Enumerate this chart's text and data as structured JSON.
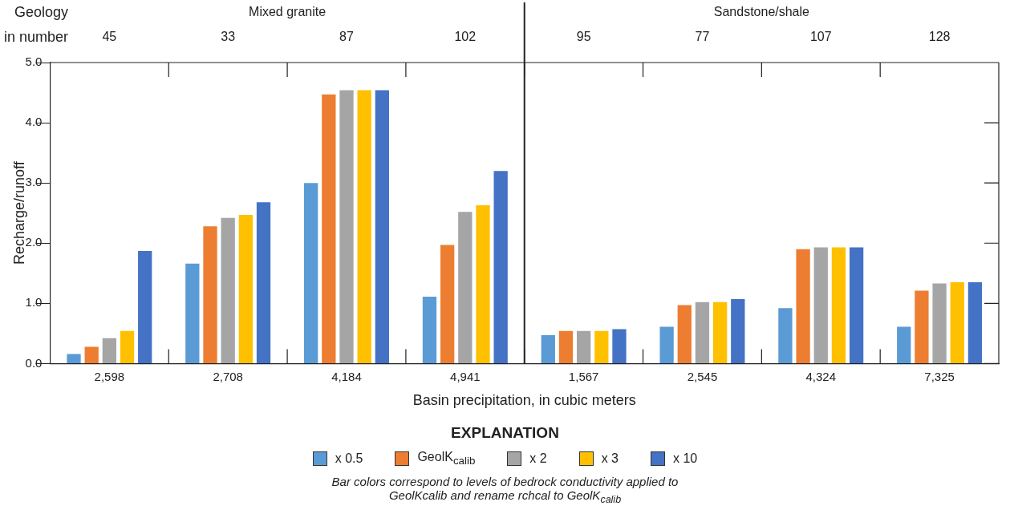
{
  "chart_data": {
    "type": "bar",
    "xlabel": "Basin precipitation, in cubic meters",
    "ylabel": "Recharge/runoff",
    "legend_title": "EXPLANATION",
    "legend": "bottom",
    "categories": [
      "2,598",
      "2,708",
      "4,184",
      "4,941",
      "1,567",
      "2,545",
      "4,324",
      "7,325"
    ],
    "ylim": [
      0,
      5
    ],
    "yticks": [
      {
        "value": 0,
        "label": "0.0"
      },
      {
        "value": 1,
        "label": "1.0"
      },
      {
        "value": 2,
        "label": "2.0"
      },
      {
        "value": 3,
        "label": "3.0"
      },
      {
        "value": 4,
        "label": "4.0"
      },
      {
        "value": 5,
        "label": "5.0"
      }
    ],
    "series": [
      {
        "name": "x 0.5",
        "color": "#5b9bd5",
        "values": [
          0.16,
          1.66,
          3.0,
          1.11,
          0.47,
          0.61,
          0.92,
          0.61
        ]
      },
      {
        "name": "GeolK$_{calib}$",
        "color": "#ed7d31",
        "values": [
          0.28,
          2.28,
          4.47,
          1.97,
          0.54,
          0.97,
          1.9,
          1.21
        ]
      },
      {
        "name": "x 2",
        "color": "#a5a5a5",
        "values": [
          0.42,
          2.42,
          4.54,
          2.52,
          0.54,
          1.02,
          1.93,
          1.33
        ]
      },
      {
        "name": "x 3",
        "color": "#ffc000",
        "values": [
          0.54,
          2.47,
          4.54,
          2.63,
          0.54,
          1.02,
          1.93,
          1.35
        ]
      },
      {
        "name": "x 10",
        "color": "#4472c4",
        "values": [
          1.87,
          2.68,
          4.54,
          3.2,
          0.57,
          1.07,
          1.93,
          1.35
        ]
      }
    ],
    "annotations": [
      "Geology",
      "in number",
      "Mixed granite",
      "Sandstone/shale",
      "45",
      "33",
      "87",
      "102",
      "95",
      "77",
      "107",
      "128",
      "Bar colors correspond to levels of bedrock conductivity applied to GeolKcalib and rename rchcal to GeolK$_{calib}$"
    ]
  }
}
